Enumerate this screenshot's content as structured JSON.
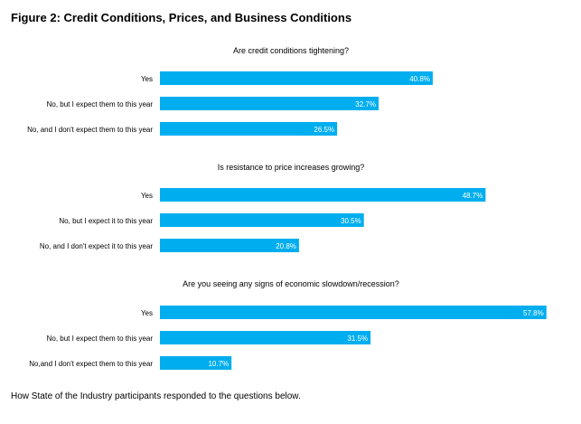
{
  "figure": {
    "title": "Figure 2: Credit Conditions, Prices, and Business Conditions",
    "caption": "How State of the Industry participants responded to the questions below."
  },
  "colors": {
    "bar": "#00AEEF",
    "value_text": "#FFFFFF"
  },
  "chart_data": [
    {
      "type": "bar",
      "orientation": "horizontal",
      "title": "Are credit conditions tightening?",
      "categories": [
        "Yes",
        "No, but I expect them to this year",
        "No, and I don't expect them to this year"
      ],
      "values": [
        40.8,
        32.7,
        26.5
      ],
      "value_labels": [
        "40.8%",
        "32.7%",
        "26.5%"
      ],
      "grid": false,
      "legend": "none"
    },
    {
      "type": "bar",
      "orientation": "horizontal",
      "title": "Is resistance to price increases growing?",
      "categories": [
        "Yes",
        "No, but I expect it to this year",
        "No, and I don't expect it to this year"
      ],
      "values": [
        48.7,
        30.5,
        20.8
      ],
      "value_labels": [
        "48.7%",
        "30.5%",
        "20.8%"
      ],
      "grid": false,
      "legend": "none"
    },
    {
      "type": "bar",
      "orientation": "horizontal",
      "title": "Are you seeing any signs of economic slowdown/recession?",
      "categories": [
        "Yes",
        "No, but I expect them to this year",
        "No,and I don't expect them to this year"
      ],
      "values": [
        57.8,
        31.5,
        10.7
      ],
      "value_labels": [
        "57.8%",
        "31.5%",
        "10.7%"
      ],
      "grid": false,
      "legend": "none"
    }
  ]
}
